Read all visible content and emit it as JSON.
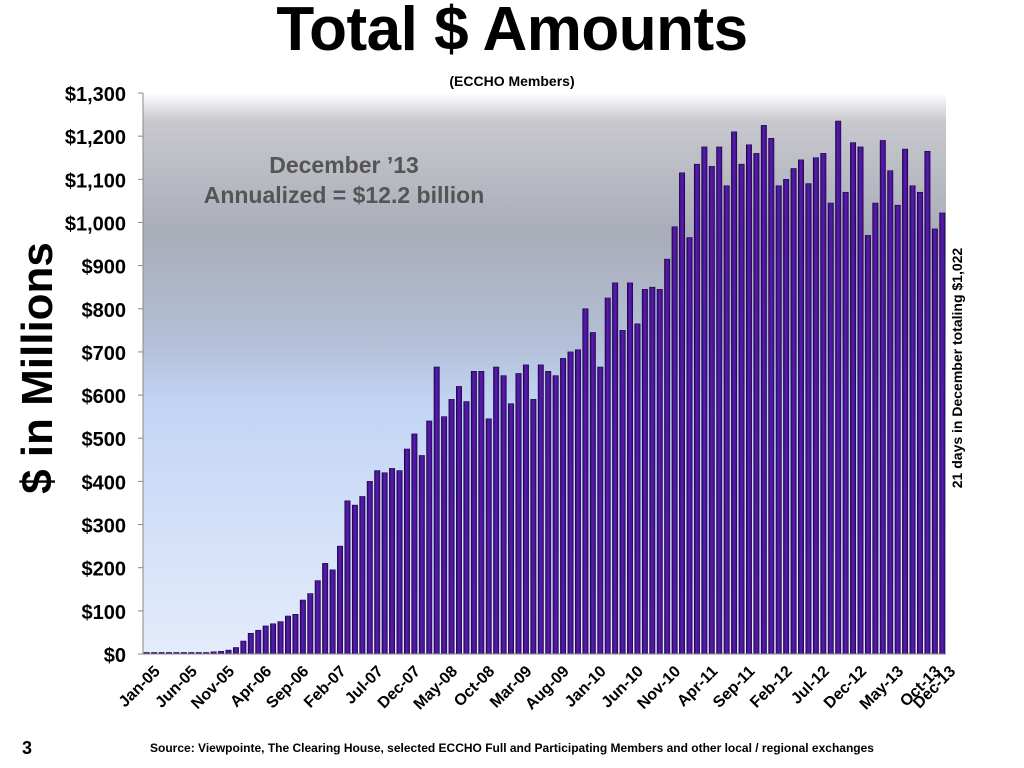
{
  "slide": {
    "title": "Total $ Amounts",
    "subtitle": "(ECCHO Members)",
    "page_number": "3",
    "source": "Source: Viewpointe, The Clearing House, selected ECCHO Full and Participating Members and other local / regional exchanges",
    "annotation_line1": "December ’13",
    "annotation_line2": "Annualized = $12.2 billion",
    "side_note": "21 days in December  totaling $1,022",
    "ylabel": "$ in Millions"
  },
  "chart_data": {
    "type": "bar",
    "ylabel": "$ in Millions",
    "ylim": [
      0,
      1300
    ],
    "yticks": [
      0,
      100,
      200,
      300,
      400,
      500,
      600,
      700,
      800,
      900,
      1000,
      1100,
      1200,
      1300
    ],
    "ytick_labels": [
      "$0",
      "$100",
      "$200",
      "$300",
      "$400",
      "$500",
      "$600",
      "$700",
      "$800",
      "$900",
      "$1,000",
      "$1,100",
      "$1,200",
      "$1,300"
    ],
    "xtick_labels": [
      "Jan-05",
      "Jun-05",
      "Nov-05",
      "Apr-06",
      "Sep-06",
      "Feb-07",
      "Jul-07",
      "Dec-07",
      "May-08",
      "Oct-08",
      "Mar-09",
      "Aug-09",
      "Jan-10",
      "Jun-10",
      "Nov-10",
      "Apr-11",
      "Sep-11",
      "Feb-12",
      "Jul-12",
      "Dec-12",
      "May-13",
      "Oct-13",
      "Dec-13"
    ],
    "xtick_index": [
      0,
      5,
      10,
      15,
      20,
      25,
      30,
      35,
      40,
      45,
      50,
      55,
      60,
      65,
      70,
      75,
      80,
      85,
      90,
      95,
      100,
      105,
      107
    ],
    "values": [
      1,
      1,
      1,
      1,
      1,
      1,
      1,
      2,
      3,
      5,
      6,
      9,
      15,
      30,
      48,
      55,
      65,
      70,
      75,
      88,
      92,
      125,
      140,
      170,
      210,
      195,
      250,
      355,
      345,
      365,
      400,
      425,
      420,
      430,
      425,
      475,
      510,
      460,
      540,
      665,
      550,
      590,
      620,
      585,
      655,
      655,
      545,
      665,
      645,
      580,
      650,
      670,
      590,
      670,
      655,
      645,
      685,
      700,
      705,
      800,
      745,
      665,
      825,
      860,
      750,
      860,
      765,
      845,
      850,
      845,
      915,
      990,
      1115,
      965,
      1135,
      1175,
      1130,
      1175,
      1085,
      1210,
      1135,
      1180,
      1160,
      1225,
      1195,
      1085,
      1100,
      1125,
      1145,
      1090,
      1150,
      1160,
      1045,
      1235,
      1070,
      1185,
      1175,
      970,
      1045,
      1190,
      1120,
      1040,
      1170,
      1085,
      1070,
      1165,
      985,
      1022
    ],
    "bar_color": "#4a1496",
    "bar_outline": "#1a0044",
    "grid": false,
    "legend": "none"
  }
}
